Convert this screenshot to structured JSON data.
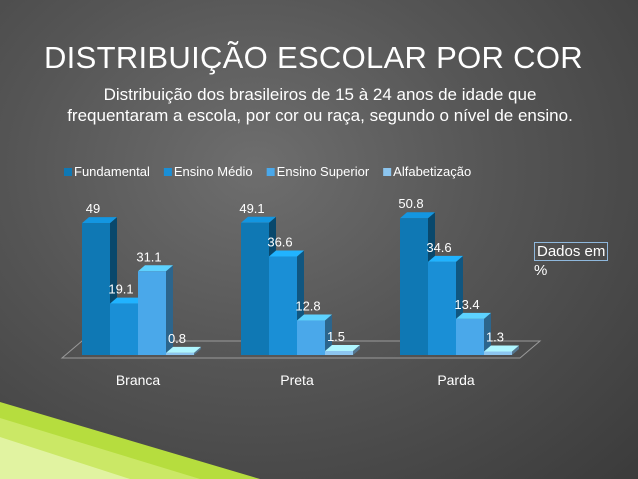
{
  "slide": {
    "title": "DISTRIBUIÇÃO ESCOLAR POR COR",
    "subtitle_line1": "Distribuição dos brasileiros de 15 à 24 anos de idade que",
    "subtitle_line2": "frequentaram a escola, por cor ou raça, segundo o nível de ensino.",
    "note_line1": "Dados em",
    "note_line2": "%"
  },
  "chart_data": {
    "type": "bar",
    "title": "",
    "xlabel": "",
    "ylabel": "",
    "categories": [
      "Branca",
      "Preta",
      "Parda"
    ],
    "series": [
      {
        "name": "Fundamental",
        "values": [
          49,
          49.1,
          50.8
        ],
        "color": "#0f78b4"
      },
      {
        "name": "Ensino Médio",
        "values": [
          19.1,
          36.6,
          34.6
        ],
        "color": "#1a8fd6"
      },
      {
        "name": "Ensino Superior",
        "values": [
          31.1,
          12.8,
          13.4
        ],
        "color": "#4aa8ea"
      },
      {
        "name": "Alfabetização",
        "values": [
          0.8,
          1.5,
          1.3
        ],
        "color": "#8cc5ef"
      }
    ],
    "ylim": [
      0,
      52
    ],
    "grid": false,
    "legend_position": "top",
    "three_d": true
  }
}
